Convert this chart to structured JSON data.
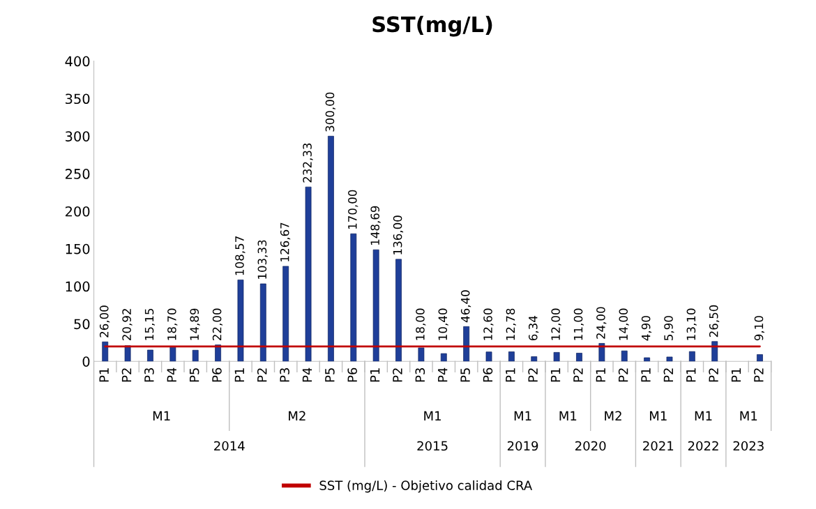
{
  "chart_data": {
    "type": "bar",
    "title": "SST(mg/L)",
    "categories": [
      "P1",
      "P2",
      "P3",
      "P4",
      "P5",
      "P6",
      "P1",
      "P2",
      "P3",
      "P4",
      "P5",
      "P6",
      "P1",
      "P2",
      "P3",
      "P4",
      "P5",
      "P6",
      "P1",
      "P2",
      "P1",
      "P2",
      "P1",
      "P2",
      "P1",
      "P2",
      "P1",
      "P2",
      "P1",
      "P2"
    ],
    "series": [
      {
        "color": "#1f3f99",
        "values": [
          26.0,
          20.92,
          15.15,
          18.7,
          14.89,
          22.0,
          108.57,
          103.33,
          126.67,
          232.33,
          300.0,
          170.0,
          148.69,
          136.0,
          18.0,
          10.4,
          46.4,
          12.6,
          12.78,
          6.34,
          12.0,
          11.0,
          24.0,
          14.0,
          4.9,
          5.9,
          13.1,
          26.5,
          null,
          9.1
        ],
        "value_labels": [
          "26,00",
          "20,92",
          "15,15",
          "18,70",
          "14,89",
          "22,00",
          "108,57",
          "103,33",
          "126,67",
          "232,33",
          "300,00",
          "170,00",
          "148,69",
          "136,00",
          "18,00",
          "10,40",
          "46,40",
          "12,60",
          "12,78",
          "6,34",
          "12,00",
          "11,00",
          "24,00",
          "14,00",
          "4,90",
          "5,90",
          "13,10",
          "26,50",
          null,
          "9,10"
        ]
      },
      {
        "type": "line",
        "name": "SST (mg/L) - Objetivo calidad CRA",
        "color": "#c00000",
        "values": [
          20,
          20,
          20,
          20,
          20,
          20,
          20,
          20,
          20,
          20,
          20,
          20,
          20,
          20,
          20,
          20,
          20,
          20,
          20,
          20,
          20,
          20,
          20,
          20,
          20,
          20,
          20,
          20,
          20,
          20
        ]
      }
    ],
    "annotations": [
      "M1",
      "M2",
      "M1",
      "M1",
      "M1",
      "M2",
      "M1",
      "M1",
      "M1",
      "2014",
      "2015",
      "2019",
      "2020",
      "2021",
      "2022",
      "2023"
    ],
    "ylim": [
      0,
      400
    ],
    "yticks": [
      0,
      50,
      100,
      150,
      200,
      250,
      300,
      350,
      400
    ],
    "grid": false,
    "legend": "bottom"
  }
}
